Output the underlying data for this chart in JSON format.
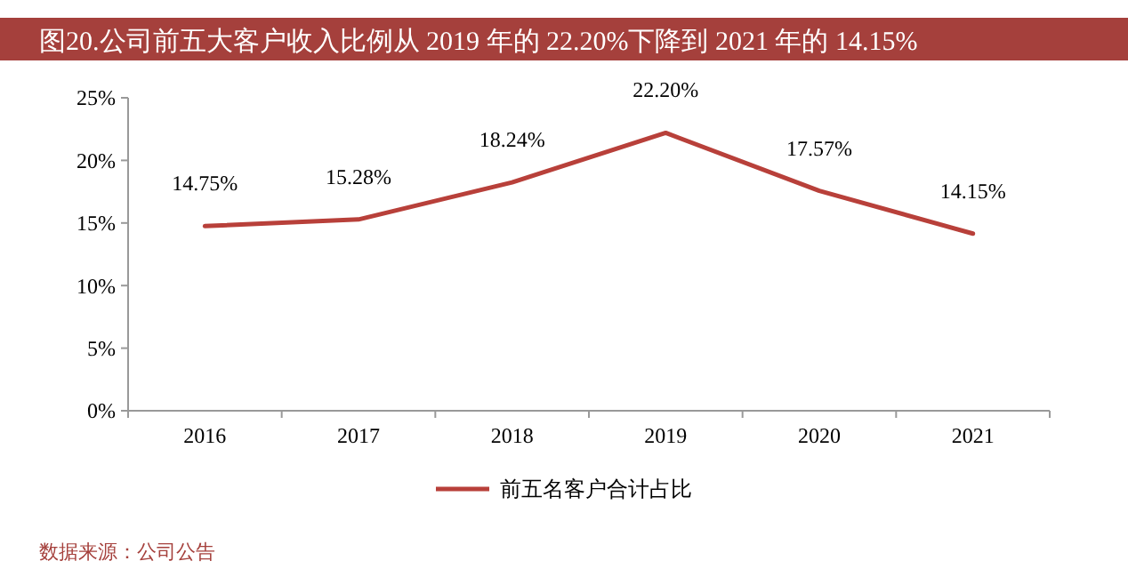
{
  "chart_data": {
    "type": "line",
    "title": "图20.公司前五大客户收入比例从 2019 年的 22.20%下降到 2021 年的 14.15%",
    "categories": [
      "2016",
      "2017",
      "2018",
      "2019",
      "2020",
      "2021"
    ],
    "series": [
      {
        "name": "前五名客户合计占比",
        "color": "#b8403a",
        "values": [
          14.75,
          15.28,
          18.24,
          22.2,
          17.57,
          14.15
        ],
        "value_labels": [
          "14.75%",
          "15.28%",
          "18.24%",
          "22.20%",
          "17.57%",
          "14.15%"
        ]
      }
    ],
    "ylim": [
      0,
      25
    ],
    "yticks": [
      {
        "value": 0,
        "label": "0%"
      },
      {
        "value": 5,
        "label": "5%"
      },
      {
        "value": 10,
        "label": "10%"
      },
      {
        "value": 15,
        "label": "15%"
      },
      {
        "value": 20,
        "label": "20%"
      },
      {
        "value": 25,
        "label": "25%"
      }
    ],
    "legend": "bottom",
    "marker": "none",
    "line_style": "solid",
    "annotations": [
      "数据来源：公司公告"
    ]
  }
}
